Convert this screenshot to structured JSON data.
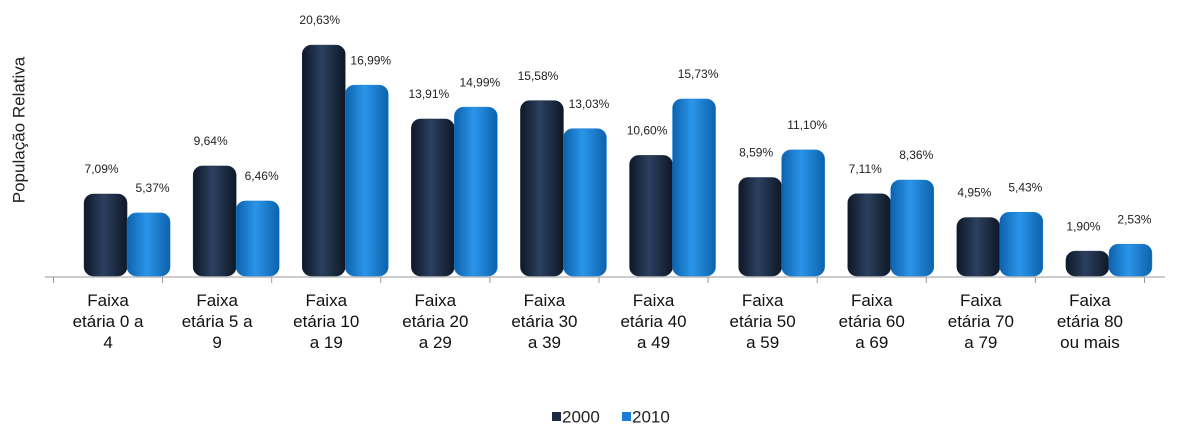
{
  "chart_data": {
    "type": "bar",
    "y_label": "População Relativa",
    "categories": [
      "Faixa etária 0 a 4",
      "Faixa etária 5 a 9",
      "Faixa etária 10 a 19",
      "Faixa etária 20 a 29",
      "Faixa etária 30 a 39",
      "Faixa etária 40 a 49",
      "Faixa etária 50 a 59",
      "Faixa etária 60 a 69",
      "Faixa etária 70 a 79",
      "Faixa etária 80 ou mais"
    ],
    "series": [
      {
        "name": "2000",
        "color": "#1b2b44",
        "values": [
          7.09,
          9.64,
          20.63,
          13.91,
          15.58,
          10.6,
          8.59,
          7.11,
          4.95,
          1.9
        ],
        "value_labels": [
          "7,09%",
          "9,64%",
          "20,63%",
          "13,91%",
          "15,58%",
          "10,60%",
          "8,59%",
          "7,11%",
          "4,95%",
          "1,90%"
        ]
      },
      {
        "name": "2010",
        "color": "#1a7fd4",
        "values": [
          5.37,
          6.46,
          16.99,
          14.99,
          13.03,
          15.73,
          11.1,
          8.36,
          5.43,
          2.53
        ],
        "value_labels": [
          "5,37%",
          "6,46%",
          "16,99%",
          "14,99%",
          "13,03%",
          "15,73%",
          "11,10%",
          "8,36%",
          "5,43%",
          "2,53%"
        ]
      }
    ],
    "ylim": [
      0,
      21.5
    ],
    "legend": "bottom"
  }
}
